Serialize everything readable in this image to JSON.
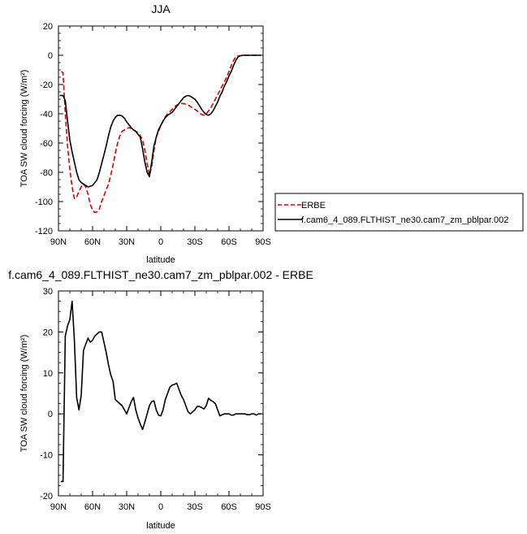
{
  "chart_data": [
    {
      "type": "line",
      "title": "JJA",
      "xlabel": "latitude",
      "ylabel": "TOA SW cloud forcing (W/m²)",
      "ylim": [
        -120,
        20
      ],
      "xlim": [
        -90,
        90
      ],
      "x_axis_reversed": true,
      "x_ticks": [
        {
          "value": -90,
          "label": "90N"
        },
        {
          "value": -60,
          "label": "60N"
        },
        {
          "value": -30,
          "label": "30N"
        },
        {
          "value": 0,
          "label": "0"
        },
        {
          "value": 30,
          "label": "30S"
        },
        {
          "value": 60,
          "label": "60S"
        },
        {
          "value": 90,
          "label": "90S"
        }
      ],
      "y_ticks": [
        20,
        0,
        -20,
        -40,
        -60,
        -80,
        -100,
        -120
      ],
      "legend_placement": "right, outside plot",
      "series": [
        {
          "name": "ERBE",
          "color": "#dd0000",
          "dash": true,
          "x": [
            -87.5,
            -86,
            -84,
            -82,
            -80,
            -78,
            -76,
            -74,
            -72,
            -70,
            -68,
            -66,
            -64,
            -62,
            -60,
            -58,
            -56,
            -54,
            -52,
            -50,
            -48,
            -46,
            -44,
            -42,
            -40,
            -38,
            -36,
            -34,
            -32,
            -30,
            -28,
            -26,
            -24,
            -22,
            -20,
            -18,
            -16,
            -14,
            -12,
            -10,
            -8,
            -6,
            -4,
            -2,
            0,
            2,
            4,
            6,
            8,
            10,
            12,
            14,
            16,
            18,
            20,
            22,
            24,
            26,
            28,
            30,
            32,
            34,
            36,
            38,
            40,
            42,
            44,
            46,
            48,
            50,
            52,
            54,
            56,
            58,
            60,
            62,
            64,
            66,
            68,
            70,
            72,
            74,
            76,
            78,
            80,
            82,
            84,
            86,
            88
          ],
          "y": [
            -11,
            -12,
            -40,
            -62,
            -78,
            -90,
            -98,
            -97,
            -93,
            -90,
            -88,
            -90,
            -95,
            -102,
            -106,
            -107.5,
            -107,
            -105,
            -100,
            -96,
            -92,
            -88,
            -82,
            -75,
            -67,
            -60,
            -55,
            -52,
            -51,
            -50,
            -49.5,
            -50,
            -51,
            -52,
            -53,
            -55,
            -58,
            -65,
            -74,
            -82,
            -76,
            -65,
            -56,
            -52,
            -48,
            -45,
            -42,
            -40,
            -38.5,
            -37,
            -35.5,
            -34,
            -33.5,
            -33,
            -33,
            -33.5,
            -34,
            -35,
            -36,
            -37,
            -38,
            -39.5,
            -40.5,
            -41,
            -40,
            -38,
            -36,
            -33,
            -30,
            -27,
            -24,
            -21,
            -18,
            -15,
            -11,
            -7,
            -3.5,
            -1,
            -0.5,
            -0.3,
            -0.2,
            -0.1,
            0,
            0,
            0,
            0,
            0,
            0,
            0
          ]
        },
        {
          "name": "f.cam6_4_089.FLTHIST_ne30.cam7_zm_pblpar.002",
          "color": "#000000",
          "dash": false,
          "x": [
            -89,
            -86,
            -84,
            -82,
            -80,
            -78,
            -76,
            -74,
            -72,
            -70,
            -68,
            -66,
            -64,
            -62,
            -60,
            -58,
            -56,
            -54,
            -52,
            -50,
            -48,
            -46,
            -44,
            -42,
            -40,
            -38,
            -36,
            -34,
            -32,
            -30,
            -28,
            -26,
            -24,
            -22,
            -20,
            -18,
            -16,
            -14,
            -12,
            -10,
            -8,
            -6,
            -4,
            -2,
            0,
            2,
            4,
            6,
            8,
            10,
            12,
            14,
            16,
            18,
            20,
            22,
            24,
            26,
            28,
            30,
            32,
            34,
            36,
            38,
            40,
            42,
            44,
            46,
            48,
            50,
            52,
            54,
            56,
            58,
            60,
            62,
            64,
            66,
            68,
            70,
            72,
            74,
            76,
            78,
            80,
            82,
            84,
            86,
            88
          ],
          "y": [
            -27.5,
            -27.5,
            -31,
            -45,
            -58,
            -66,
            -73,
            -80,
            -85,
            -87,
            -88,
            -89,
            -90,
            -89.5,
            -89,
            -87,
            -85,
            -80,
            -74,
            -68,
            -62,
            -55,
            -49,
            -45,
            -42.5,
            -41,
            -41,
            -41.5,
            -43,
            -45.5,
            -47.5,
            -49.5,
            -51,
            -52,
            -54,
            -56,
            -64,
            -73,
            -80,
            -83,
            -73,
            -62,
            -56,
            -51,
            -48,
            -45,
            -42.5,
            -41,
            -40,
            -39,
            -37,
            -35,
            -33,
            -31,
            -29,
            -28,
            -27.5,
            -28,
            -29,
            -30,
            -32,
            -34.5,
            -37,
            -39,
            -40.5,
            -41,
            -40,
            -38,
            -35,
            -32,
            -28,
            -25,
            -21,
            -18,
            -14,
            -11,
            -7,
            -3.5,
            -1,
            -0.3,
            0,
            0,
            0,
            0,
            0,
            0,
            0,
            0,
            0
          ]
        }
      ]
    },
    {
      "type": "line",
      "title": "f.cam6_4_089.FLTHIST_ne30.cam7_zm_pblpar.002 - ERBE",
      "xlabel": "latitude",
      "ylabel": "TOA SW cloud forcing (W/m²)",
      "ylim": [
        -20,
        30
      ],
      "xlim": [
        -90,
        90
      ],
      "x_axis_reversed": true,
      "x_ticks": [
        {
          "value": -90,
          "label": "90N"
        },
        {
          "value": -60,
          "label": "60N"
        },
        {
          "value": -30,
          "label": "30N"
        },
        {
          "value": 0,
          "label": "0"
        },
        {
          "value": 30,
          "label": "30S"
        },
        {
          "value": 60,
          "label": "60S"
        },
        {
          "value": 90,
          "label": "90S"
        }
      ],
      "y_ticks": [
        30,
        20,
        10,
        0,
        -10,
        -20
      ],
      "series": [
        {
          "color": "#000000",
          "x": [
            -88,
            -86,
            -84,
            -82,
            -80,
            -78,
            -76,
            -74,
            -72,
            -70,
            -68,
            -66,
            -64,
            -62,
            -60,
            -58,
            -56,
            -54,
            -52,
            -50,
            -48,
            -46,
            -44,
            -42,
            -40,
            -38,
            -36,
            -34,
            -32,
            -30,
            -28,
            -26,
            -24,
            -22,
            -20,
            -18,
            -16,
            -14,
            -12,
            -10,
            -8,
            -6,
            -4,
            -2,
            0,
            2,
            4,
            6,
            8,
            10,
            12,
            14,
            16,
            18,
            20,
            22,
            24,
            26,
            28,
            30,
            32,
            34,
            36,
            38,
            40,
            42,
            44,
            46,
            48,
            50,
            52,
            54,
            56,
            58,
            60,
            62,
            64,
            66,
            68,
            70,
            72,
            74,
            76,
            78,
            80,
            82,
            84,
            86,
            88
          ],
          "y": [
            -16.5,
            -16.5,
            19,
            21.5,
            23,
            27.5,
            18,
            4,
            1,
            4.5,
            15.5,
            17,
            18.5,
            17.5,
            18,
            19,
            19.5,
            20,
            20,
            17.5,
            15,
            12,
            9.5,
            8,
            3.5,
            3,
            2.5,
            2,
            1,
            0,
            1.5,
            3,
            4,
            1,
            -1,
            -2.5,
            -3.8,
            -2,
            0,
            2,
            3,
            3.2,
            1,
            -0.3,
            -0.5,
            1,
            3.5,
            5,
            6.5,
            7,
            7.2,
            7.5,
            6,
            4.5,
            3.5,
            2,
            0.5,
            0,
            0.5,
            1,
            1.8,
            1.8,
            1.5,
            1.2,
            2,
            3.8,
            3.3,
            3,
            2.5,
            1,
            -0.5,
            -0.2,
            0,
            0,
            0,
            -0.3,
            -0.3,
            0,
            0,
            0,
            0,
            0,
            -0.2,
            -0.2,
            0,
            0,
            -0.3,
            0,
            0
          ]
        }
      ]
    }
  ]
}
